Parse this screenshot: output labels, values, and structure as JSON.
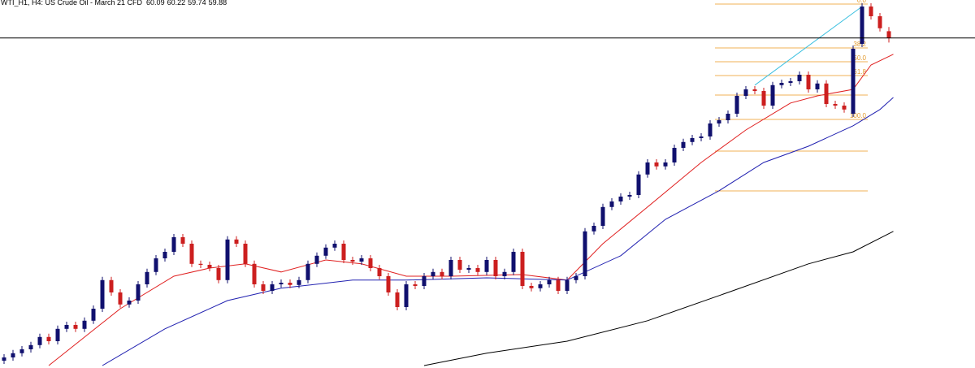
{
  "chart_data": {
    "type": "candlestick",
    "title": "WTI_H1, H4: US Crude Oil - March 21 CFD",
    "ylim": [
      49.725,
      61.05
    ],
    "bull_color": "#10106e",
    "bear_color": "#cc1f1f",
    "open": [
      49.95,
      50.05,
      50.18,
      50.3,
      50.43,
      50.68,
      50.55,
      50.93,
      51.05,
      50.93,
      51.18,
      51.55,
      52.43,
      52.05,
      51.68,
      51.8,
      52.3,
      52.68,
      53.1,
      53.3,
      53.75,
      53.55,
      52.93,
      52.9,
      52.8,
      52.43,
      53.68,
      53.55,
      52.93,
      52.3,
      52.1,
      52.3,
      52.35,
      52.28,
      52.43,
      52.93,
      53.18,
      53.43,
      53.55,
      53.05,
      53.0,
      53.1,
      52.8,
      52.55,
      52.05,
      51.6,
      52.3,
      52.25,
      52.55,
      52.68,
      52.55,
      53.05,
      52.75,
      52.8,
      52.68,
      53.05,
      52.55,
      52.68,
      53.3,
      52.25,
      52.18,
      52.3,
      52.43,
      52.1,
      52.43,
      52.55,
      53.93,
      54.1,
      54.68,
      54.85,
      55.0,
      55.05,
      55.68,
      56.05,
      55.93,
      56.05,
      56.5,
      56.68,
      56.8,
      56.85,
      57.25,
      57.35,
      57.55,
      58.1,
      58.3,
      58.25,
      57.8,
      58.43,
      58.5,
      58.55,
      58.75,
      58.3,
      58.48,
      57.85,
      57.8,
      57.55,
      59.7,
      60.85,
      60.55,
      60.09
    ],
    "high": [
      50.15,
      50.28,
      50.4,
      50.53,
      50.78,
      50.78,
      51.03,
      51.15,
      51.15,
      51.28,
      51.65,
      52.53,
      52.53,
      52.15,
      51.9,
      52.4,
      52.78,
      53.2,
      53.4,
      53.85,
      53.85,
      53.65,
      53.03,
      53.0,
      52.9,
      53.78,
      53.78,
      53.65,
      53.03,
      52.4,
      52.4,
      52.45,
      52.45,
      52.53,
      53.03,
      53.28,
      53.53,
      53.65,
      53.65,
      53.15,
      53.2,
      53.2,
      52.9,
      52.65,
      52.15,
      52.4,
      52.4,
      52.65,
      52.78,
      52.78,
      53.15,
      53.15,
      52.9,
      52.9,
      53.15,
      53.15,
      52.78,
      53.4,
      53.4,
      52.35,
      52.4,
      52.53,
      52.53,
      52.53,
      52.65,
      54.03,
      54.2,
      54.78,
      54.95,
      55.1,
      55.15,
      55.78,
      56.15,
      56.15,
      56.15,
      56.6,
      56.78,
      56.9,
      56.95,
      57.35,
      57.45,
      57.65,
      58.2,
      58.4,
      58.4,
      58.35,
      58.53,
      58.6,
      58.65,
      58.85,
      58.85,
      58.58,
      58.58,
      57.95,
      57.9,
      59.65,
      60.95,
      60.95,
      60.65,
      60.22
    ],
    "low": [
      49.85,
      49.95,
      50.08,
      50.2,
      50.33,
      50.45,
      50.45,
      50.83,
      50.83,
      50.83,
      51.08,
      51.45,
      51.95,
      51.58,
      51.58,
      51.7,
      52.2,
      52.58,
      53.0,
      53.2,
      53.45,
      52.83,
      52.8,
      52.7,
      52.33,
      52.33,
      53.45,
      52.83,
      52.2,
      52.0,
      52.0,
      52.2,
      52.18,
      52.18,
      52.33,
      52.83,
      53.08,
      53.33,
      52.95,
      52.9,
      52.9,
      52.7,
      52.45,
      51.95,
      51.5,
      51.5,
      52.15,
      52.15,
      52.45,
      52.45,
      52.45,
      52.65,
      52.65,
      52.58,
      52.58,
      52.45,
      52.45,
      52.58,
      52.15,
      52.08,
      52.08,
      52.2,
      52.0,
      52.0,
      52.33,
      52.45,
      53.83,
      54.0,
      54.58,
      54.75,
      54.9,
      54.95,
      55.58,
      55.83,
      55.83,
      55.95,
      56.4,
      56.58,
      56.7,
      56.75,
      57.15,
      57.25,
      57.45,
      58.0,
      58.15,
      57.7,
      57.7,
      58.33,
      58.4,
      58.45,
      58.2,
      58.2,
      57.75,
      57.7,
      57.58,
      57.45,
      59.6,
      60.45,
      60.08,
      59.74
    ],
    "close": [
      50.05,
      50.18,
      50.3,
      50.43,
      50.68,
      50.55,
      50.93,
      51.05,
      50.93,
      51.18,
      51.55,
      52.43,
      52.05,
      51.68,
      51.8,
      52.3,
      52.68,
      53.1,
      53.3,
      53.75,
      53.55,
      52.93,
      52.9,
      52.8,
      52.43,
      53.68,
      53.55,
      52.93,
      52.3,
      52.1,
      52.3,
      52.35,
      52.28,
      52.43,
      52.93,
      53.18,
      53.43,
      53.55,
      53.05,
      53.0,
      53.1,
      52.8,
      52.55,
      52.05,
      51.6,
      52.3,
      52.25,
      52.55,
      52.68,
      52.55,
      53.05,
      52.75,
      52.8,
      52.68,
      53.05,
      52.55,
      52.68,
      53.3,
      52.25,
      52.18,
      52.3,
      52.43,
      52.1,
      52.43,
      52.55,
      53.93,
      54.1,
      54.68,
      54.85,
      55.0,
      55.05,
      55.68,
      56.05,
      55.93,
      56.05,
      56.5,
      56.68,
      56.8,
      56.85,
      57.25,
      57.35,
      57.55,
      58.1,
      58.3,
      58.25,
      57.8,
      58.43,
      58.5,
      58.55,
      58.75,
      58.3,
      58.48,
      57.85,
      57.8,
      57.68,
      59.55,
      60.85,
      60.55,
      60.18,
      59.88
    ],
    "lines": [
      {
        "color": "#e02020",
        "x": [
          5,
          13,
          19,
          23,
          27,
          31,
          36,
          40,
          45,
          50,
          58,
          63,
          67,
          72,
          78,
          83,
          88,
          91,
          95,
          97,
          99.5
        ],
        "values": [
          49.8,
          51.55,
          52.55,
          52.8,
          52.93,
          52.68,
          53.05,
          52.93,
          52.55,
          52.55,
          52.6,
          52.43,
          53.55,
          54.68,
          56.05,
          57.05,
          57.88,
          58.1,
          58.3,
          59.05,
          59.38
        ]
      },
      {
        "color": "#2020b0",
        "x": [
          11,
          18,
          25,
          31,
          39,
          45,
          54,
          63,
          69,
          74,
          80,
          85,
          90,
          95,
          98,
          99.5
        ],
        "values": [
          49.8,
          50.93,
          51.8,
          52.18,
          52.43,
          52.43,
          52.5,
          52.43,
          53.18,
          54.3,
          55.18,
          56.05,
          56.55,
          57.18,
          57.68,
          58.05
        ]
      },
      {
        "color": "#000000",
        "x": [
          47,
          54,
          63,
          72,
          81,
          90,
          95,
          99.5
        ],
        "values": [
          49.8,
          50.18,
          50.55,
          51.18,
          52.05,
          52.93,
          53.3,
          53.93
        ]
      },
      {
        "color": "#3cc0e0",
        "x": [
          84,
          96
        ],
        "values": [
          58.43,
          60.85
        ]
      }
    ],
    "fib_color": "#f2b155",
    "fib_levels": [
      {
        "value": 60.925,
        "label": "0.0"
      },
      {
        "value": 59.575,
        "label": "38.2"
      },
      {
        "value": 59.15,
        "label": "50.0"
      },
      {
        "value": 58.725,
        "label": "61.8"
      },
      58.125,
      {
        "value": 57.375,
        "label": "100.0"
      },
      56.4,
      55.175
    ]
  }
}
